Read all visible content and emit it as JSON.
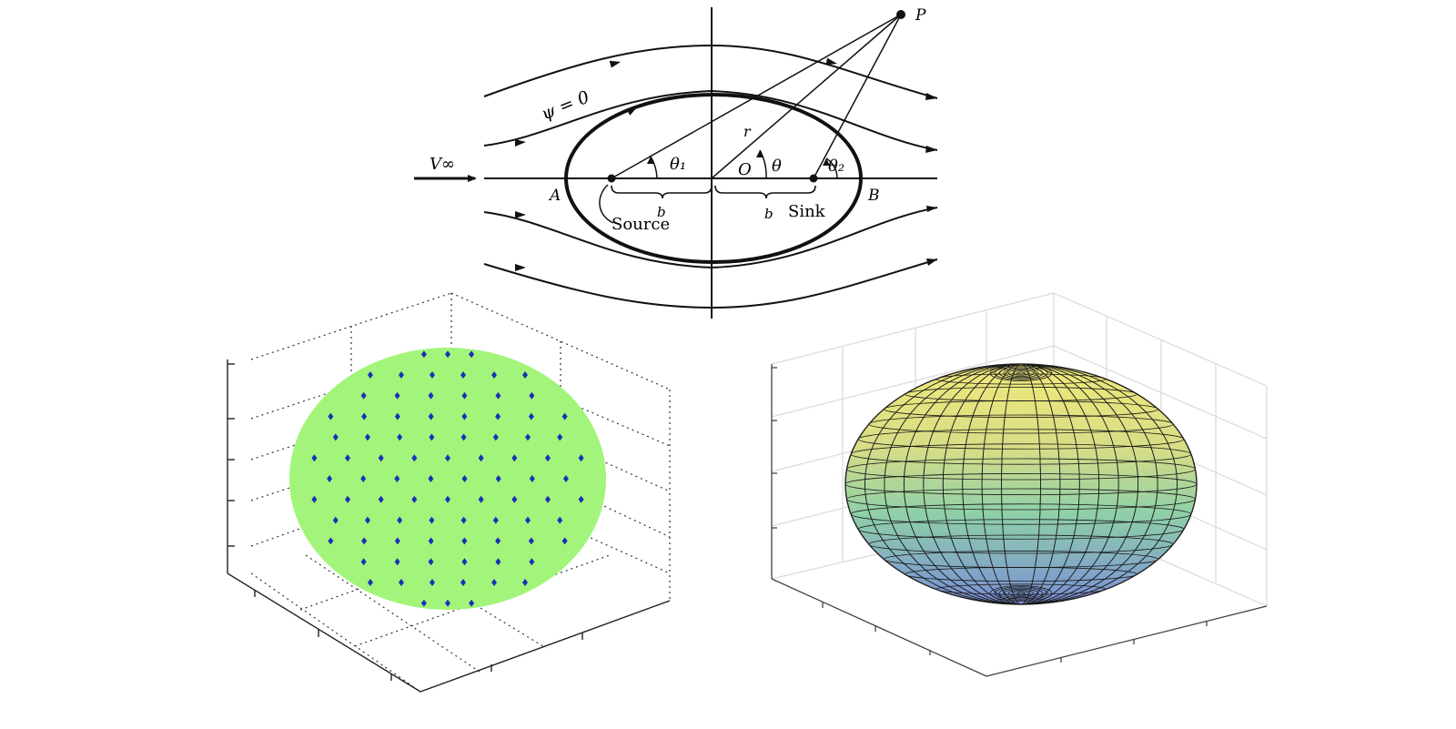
{
  "flow_diagram": {
    "labels": {
      "p": "P",
      "psi": "ψ = 0",
      "v_inf": "V∞",
      "theta1": "θ₁",
      "origin": "O",
      "theta": "θ",
      "theta2": "θ₂",
      "r": "r",
      "a": "A",
      "b_point": "B",
      "b_left": "b",
      "b_right": "b",
      "source": "Source",
      "sink": "Sink"
    }
  },
  "colors": {
    "ink": "#111111",
    "sphere_fill": "#a2f57a",
    "sphere_dots": "#1c2fb8",
    "grid_dotted": "#333333",
    "surface_top": "#e9e37c",
    "surface_mid": "#8ccfa4",
    "surface_bottom": "#7a93d6",
    "surface_grid": "#dddddd"
  },
  "icons": [
    "flow-arrow-icon"
  ]
}
